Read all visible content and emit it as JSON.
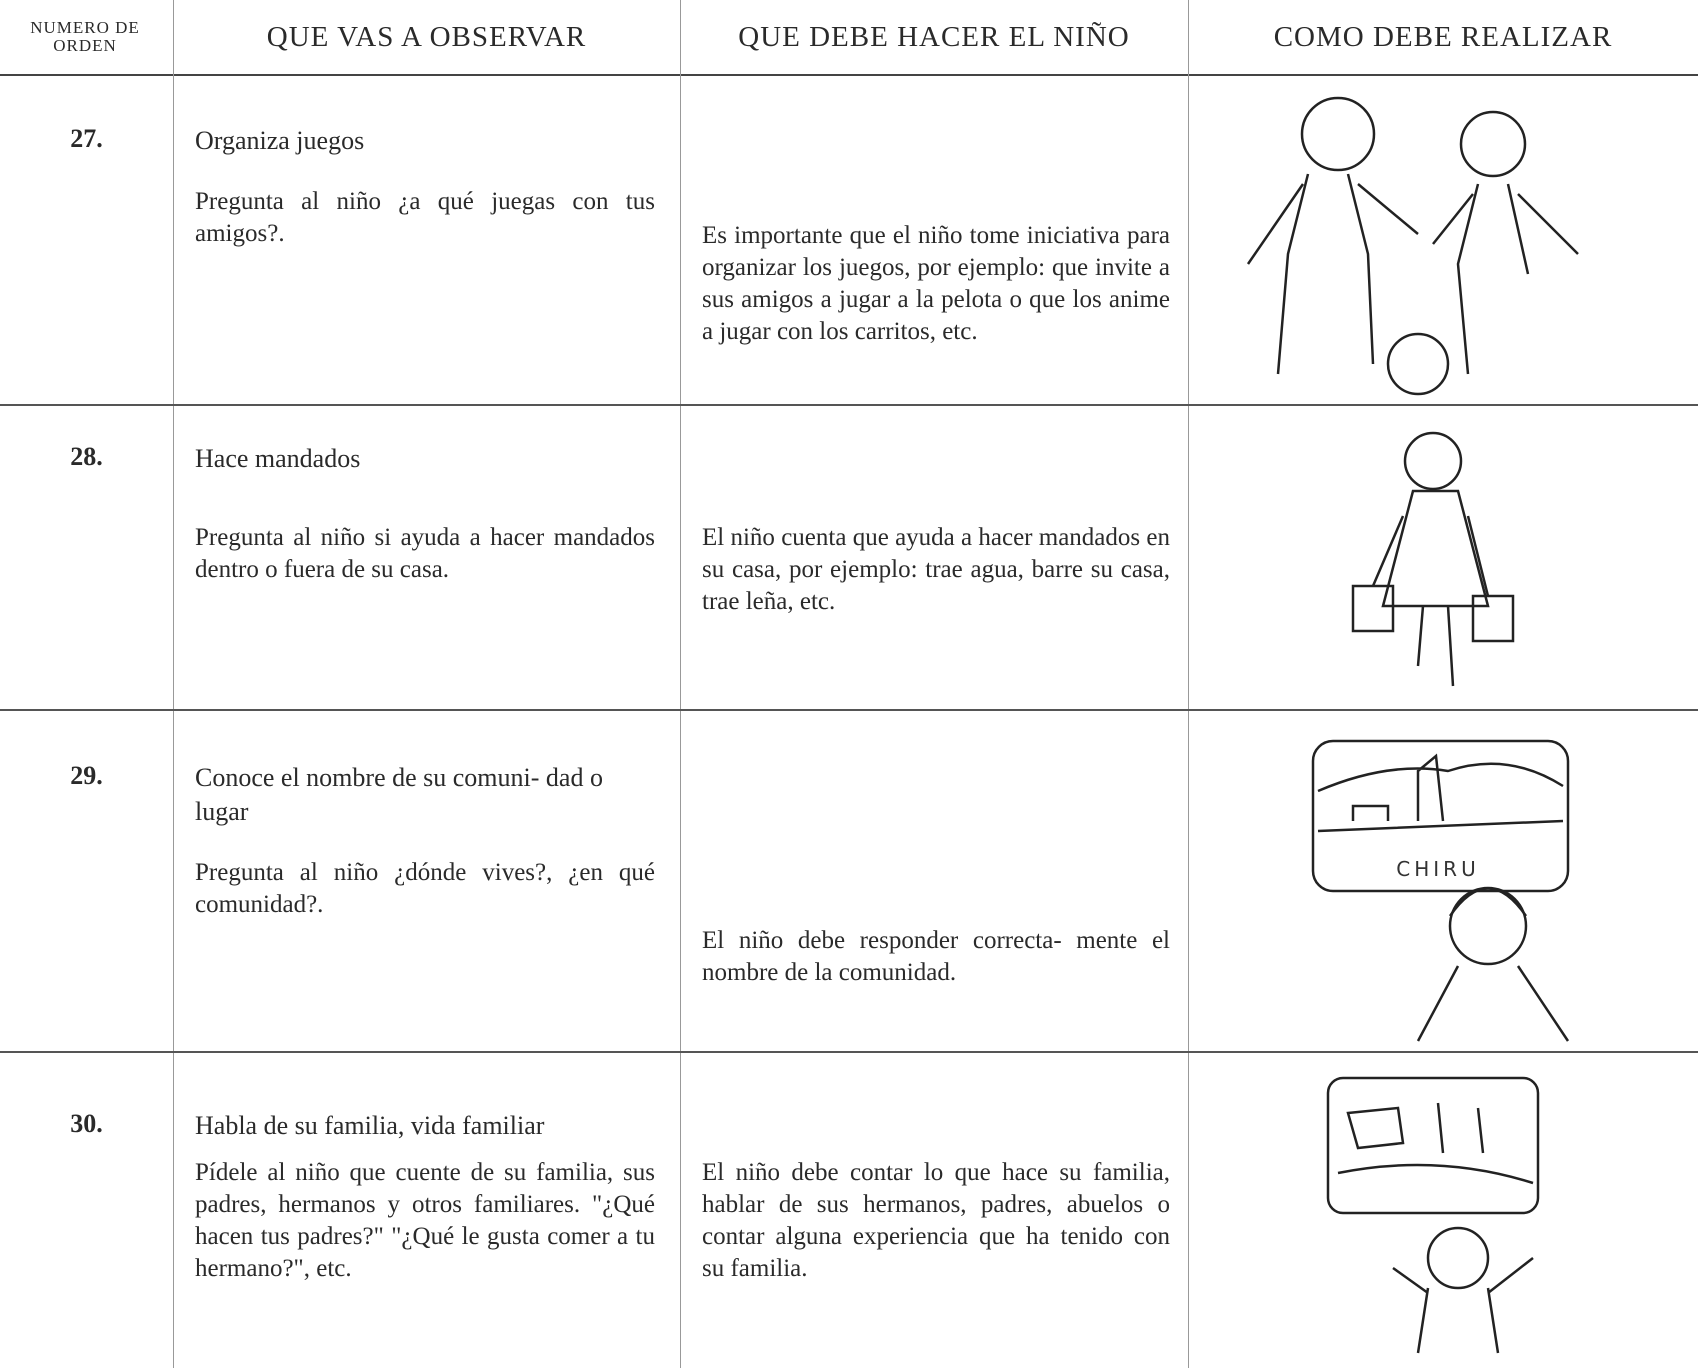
{
  "header": {
    "columns": [
      "NUMERO DE ORDEN",
      "QUE VAS A OBSERVAR",
      "QUE DEBE HACER EL NIÑO",
      "COMO DEBE REALIZAR"
    ]
  },
  "rows": [
    {
      "number": "27.",
      "title": "Organiza juegos",
      "question": "Pregunta al niño ¿a qué juegas con tus amigos?.",
      "expectation": "Es importante que el niño tome iniciativa para organizar los juegos, por ejemplo: que invite a sus amigos a jugar a la pelota o que los anime a jugar con los carritos, etc."
    },
    {
      "number": "28.",
      "title": "Hace mandados",
      "question": "Pregunta al niño si ayuda a hacer mandados dentro o fuera de su casa.",
      "expectation": "El niño cuenta que ayuda a hacer mandados en su casa, por ejemplo: trae agua, barre su casa, trae leña, etc."
    },
    {
      "number": "29.",
      "title": "Conoce el nombre de su comuni- dad o lugar",
      "question": "Pregunta al niño ¿dónde vives?, ¿en qué comunidad?.",
      "expectation": "El niño debe responder correcta- mente el nombre de la comunidad.",
      "sign": "CHIRU"
    },
    {
      "number": "30.",
      "title": "Habla de su familia, vida familiar",
      "question": "Pídele al niño que cuente de su familia, sus padres, hermanos y otros familiares. \"¿Qué hacen tus padres?\" \"¿Qué le gusta comer a tu hermano?\", etc.",
      "expectation": "El niño debe contar lo que hace su familia, hablar de sus hermanos, padres, abuelos o contar alguna experiencia que ha tenido con su familia."
    }
  ]
}
